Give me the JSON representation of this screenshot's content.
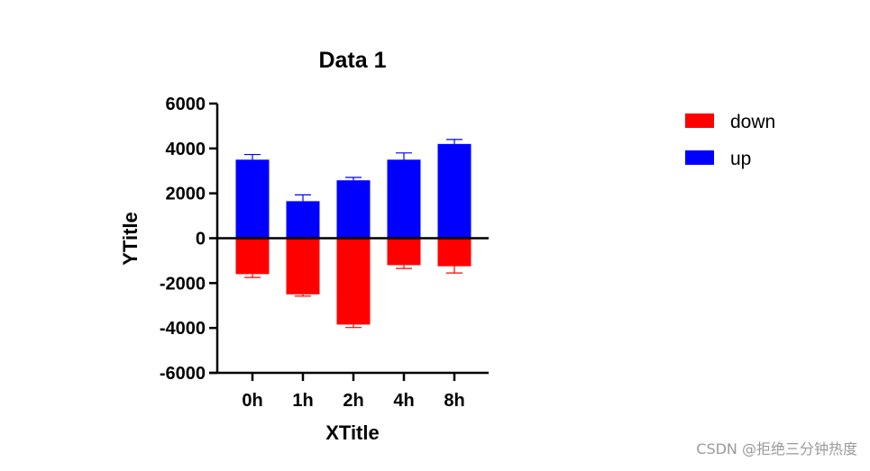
{
  "chart_data": {
    "type": "bar",
    "title": "Data 1",
    "xlabel": "XTitle",
    "ylabel": "YTitle",
    "categories": [
      "0h",
      "1h",
      "2h",
      "4h",
      "8h"
    ],
    "ylim": [
      -6000,
      6000
    ],
    "yticks": [
      6000,
      4000,
      2000,
      0,
      -2000,
      -4000,
      -6000
    ],
    "stacked": true,
    "series": [
      {
        "name": "down",
        "color": "#ff0000",
        "values": [
          -1600,
          -2500,
          -3850,
          -1200,
          -1250
        ],
        "errors": [
          150,
          80,
          130,
          150,
          300
        ]
      },
      {
        "name": "up",
        "color": "#0000ff",
        "values": [
          3500,
          1650,
          2580,
          3500,
          4200
        ],
        "errors": [
          230,
          280,
          130,
          300,
          200
        ]
      }
    ],
    "legend": "right",
    "grid": false
  },
  "watermark": "CSDN @拒绝三分钟热度"
}
